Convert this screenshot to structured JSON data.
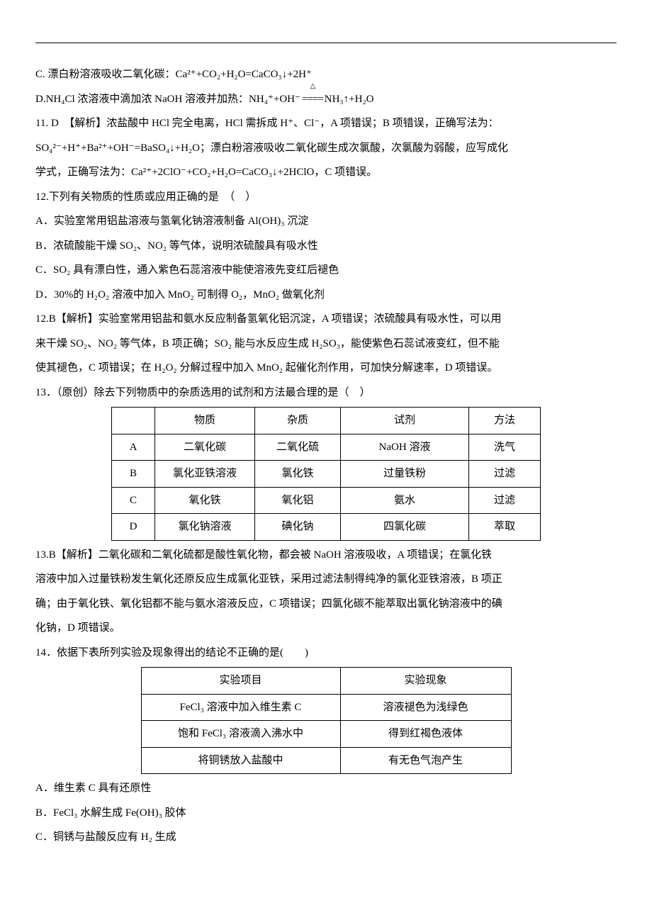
{
  "colors": {
    "text": "#000000",
    "bg": "#ffffff",
    "border": "#000000"
  },
  "font": {
    "family": "SimSun",
    "size_pt": 11
  },
  "lineC": "C. 漂白粉溶液吸收二氧化碳：Ca²⁺+CO₂+H₂O=CaCO₃↓+2H⁺",
  "lineD_pre": "D.NH₄Cl 浓溶液中滴加浓 NaOH 溶液并加热：NH₄⁺+OH⁻",
  "lineD_post": "NH₃↑+H₂O",
  "ans11_a": "11. D　【解析】浓盐酸中 HCl 完全电离，HCl 需拆成 H⁺、Cl⁻，A 项错误；B 项错误，正确写法为：",
  "ans11_b": "SO₄²⁻+H⁺+Ba²⁺+OH⁻=BaSO₄↓+H₂O；漂白粉溶液吸收二氧化碳生成次氯酸，次氯酸为弱酸，应写成化",
  "ans11_c": "学式，正确写法为：Ca²⁺+2ClO⁻+CO₂+H₂O=CaCO₃↓+2HClO，C 项错误。",
  "q12_stem": "12.下列有关物质的性质或应用正确的是　（　）",
  "q12_A": "A．实验室常用铝盐溶液与氢氧化钠溶液制备 Al(OH)₃ 沉淀",
  "q12_B": "B．浓硫酸能干燥 SO₂、NO₂ 等气体，说明浓硫酸具有吸水性",
  "q12_C": "C．SO₂ 具有漂白性，通入紫色石蕊溶液中能使溶液先变红后褪色",
  "q12_D": "D．30%的 H₂O₂ 溶液中加入 MnO₂ 可制得 O₂，MnO₂ 做氧化剂",
  "ans12_a": "12.B【解析】实验室常用铝盐和氨水反应制备氢氧化铝沉淀，A 项错误；浓硫酸具有吸水性，可以用",
  "ans12_b": "来干燥 SO₂、NO₂ 等气体，B 项正确；SO₂ 能与水反应生成 H₂SO₃，能使紫色石蕊试液变红，但不能",
  "ans12_c": "使其褪色，C 项错误；在 H₂O₂ 分解过程中加入 MnO₂ 起催化剂作用，可加快分解速率，D 项错误。",
  "q13_stem": "13．（原创）除去下列物质中的杂质选用的试剂和方法最合理的是（　）",
  "table1": {
    "headers": [
      "",
      "物质",
      "杂质",
      "试剂",
      "方法"
    ],
    "rows": [
      [
        "A",
        "二氧化碳",
        "二氧化硫",
        "NaOH 溶液",
        "洗气"
      ],
      [
        "B",
        "氯化亚铁溶液",
        "氯化铁",
        "过量铁粉",
        "过滤"
      ],
      [
        "C",
        "氧化铁",
        "氧化铝",
        "氨水",
        "过滤"
      ],
      [
        "D",
        "氯化钠溶液",
        "碘化钠",
        "四氯化碳",
        "萃取"
      ]
    ]
  },
  "ans13_a": "13.B【解析】二氧化碳和二氧化硫都是酸性氧化物，都会被 NaOH 溶液吸收，A 项错误；在氯化铁",
  "ans13_b": "溶液中加入过量铁粉发生氧化还原反应生成氯化亚铁，采用过滤法制得纯净的氯化亚铁溶液，B 项正",
  "ans13_c": "确；由于氧化铁、氧化铝都不能与氨水溶液反应，C 项错误；四氯化碳不能萃取出氯化钠溶液中的碘",
  "ans13_d": "化钠，D 项错误。",
  "q14_stem": "14．依据下表所列实验及现象得出的结论不正确的是(　　)",
  "table2": {
    "headers": [
      "实验项目",
      "实验现象"
    ],
    "rows": [
      [
        "FeCl₃ 溶液中加入维生素 C",
        "溶液褪色为浅绿色"
      ],
      [
        "饱和 FeCl₃ 溶液滴入沸水中",
        "得到红褐色液体"
      ],
      [
        "将铜锈放入盐酸中",
        "有无色气泡产生"
      ]
    ]
  },
  "q14_A": "A．维生素 C 具有还原性",
  "q14_B": "B．FeCl₃ 水解生成 Fe(OH)₃ 胶体",
  "q14_C": "C．铜锈与盐酸反应有 H₂ 生成"
}
